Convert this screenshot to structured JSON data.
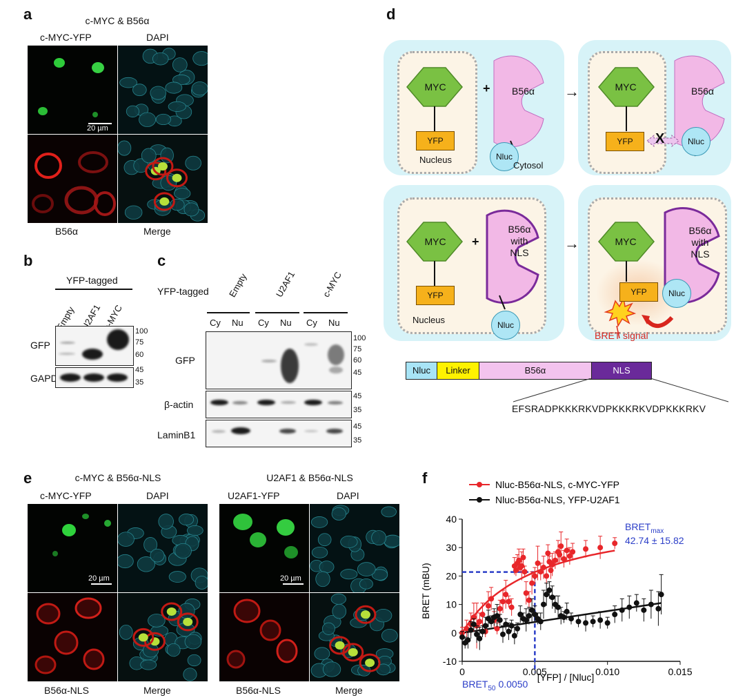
{
  "panels": {
    "a": "a",
    "b": "b",
    "c": "c",
    "d": "d",
    "e": "e",
    "f": "f"
  },
  "panel_a": {
    "title": "c-MYC & B56α",
    "labels": {
      "tl": "c-MYC-YFP",
      "tr": "DAPI",
      "bl": "B56α",
      "br": "Merge"
    },
    "scale_bar": "20 µm"
  },
  "panel_b": {
    "header": "YFP-tagged",
    "lanes": [
      "Empty",
      "U2AF1",
      "c-MYC"
    ],
    "rows": [
      "GFP",
      "GAPDH"
    ],
    "mw_gfp": [
      "100",
      "75",
      "60"
    ],
    "mw_gapdh": [
      "45",
      "35"
    ]
  },
  "panel_c": {
    "header": "YFP-tagged",
    "groups": [
      "Empty",
      "U2AF1",
      "c-MYC"
    ],
    "fractions": [
      "Cy",
      "Nu",
      "Cy",
      "Nu",
      "Cy",
      "Nu"
    ],
    "rows": [
      "GFP",
      "β-actin",
      "LaminB1"
    ],
    "mw_gfp": [
      "100",
      "75",
      "60",
      "45"
    ],
    "mw_actin": [
      "45",
      "35"
    ],
    "mw_lamin": [
      "45",
      "35"
    ]
  },
  "panel_d": {
    "myc": "MYC",
    "plus": "+",
    "b56a": "B56α",
    "yfp": "YFP",
    "nluc": "Nluc",
    "nucleus": "Nucleus",
    "cytosol": "Cytosol",
    "arrow": "→",
    "cross": "X",
    "b56a_nls": [
      "B56α",
      "with",
      "NLS"
    ],
    "bret_signal": "BRET signal",
    "construct": [
      "Nluc",
      "Linker",
      "B56α",
      "NLS"
    ],
    "nls_sequence": "EFSRADPKKKRKVDPKKKRKVDPKKKRKV"
  },
  "panel_e": {
    "left_title": "c-MYC & B56α-NLS",
    "right_title": "U2AF1 & B56α-NLS",
    "left_labels": {
      "tl": "c-MYC-YFP",
      "tr": "DAPI",
      "bl": "B56α-NLS",
      "br": "Merge"
    },
    "right_labels": {
      "tl": "U2AF1-YFP",
      "tr": "DAPI",
      "bl": "B56α-NLS",
      "br": "Merge"
    },
    "scale_bar": "20 µm"
  },
  "chart_data": {
    "type": "scatter",
    "xlabel": "[YFP] / [Nluc]",
    "ylabel": "BRET (mBU)",
    "xlim": [
      0,
      0.015
    ],
    "ylim": [
      -10,
      40
    ],
    "xticks": [
      "0",
      "0.005",
      "0.010",
      "0.015"
    ],
    "yticks": [
      "-10",
      "0",
      "10",
      "20",
      "30",
      "40"
    ],
    "bret_max_label": "BRET",
    "bret_max_sub": "max",
    "bret_max_value": "42.74 ± 15.82",
    "bret50_label": "BRET",
    "bret50_sub": "50",
    "bret50_value": "0.0050",
    "bret50_point": [
      0.005,
      21.4
    ],
    "legend_position": "top",
    "series": [
      {
        "name": "Nluc-B56α-NLS, c-MYC-YFP",
        "color": "#e8262a",
        "points": [
          [
            0.0,
            0.0,
            2
          ],
          [
            0.0003,
            1.5,
            3
          ],
          [
            0.0006,
            3.0,
            4
          ],
          [
            0.0008,
            5.5,
            5
          ],
          [
            0.001,
            2.5,
            8
          ],
          [
            0.0012,
            4.0,
            3
          ],
          [
            0.0014,
            6.5,
            4
          ],
          [
            0.0016,
            0.5,
            2
          ],
          [
            0.0018,
            9.5,
            5
          ],
          [
            0.002,
            12.0,
            4
          ],
          [
            0.0022,
            4.5,
            3
          ],
          [
            0.0024,
            1.5,
            2
          ],
          [
            0.0026,
            8.5,
            3
          ],
          [
            0.0028,
            11.0,
            4
          ],
          [
            0.003,
            13.5,
            5
          ],
          [
            0.0032,
            11.0,
            2
          ],
          [
            0.0034,
            9.0,
            3
          ],
          [
            0.0036,
            23.5,
            3
          ],
          [
            0.0037,
            22.0,
            2
          ],
          [
            0.0038,
            24.5,
            3
          ],
          [
            0.0039,
            25.5,
            4
          ],
          [
            0.004,
            23.0,
            2
          ],
          [
            0.0041,
            23.5,
            5
          ],
          [
            0.0042,
            26.5,
            3
          ],
          [
            0.0043,
            21.5,
            2
          ],
          [
            0.0044,
            14.0,
            4
          ],
          [
            0.0046,
            11.5,
            3
          ],
          [
            0.0048,
            17.5,
            4
          ],
          [
            0.005,
            20.0,
            3
          ],
          [
            0.0052,
            24.5,
            6
          ],
          [
            0.0054,
            21.5,
            3
          ],
          [
            0.0056,
            23.0,
            4
          ],
          [
            0.0058,
            20.0,
            3
          ],
          [
            0.0059,
            28.0,
            3
          ],
          [
            0.006,
            25.0,
            2
          ],
          [
            0.0061,
            22.0,
            3
          ],
          [
            0.0062,
            24.0,
            4
          ],
          [
            0.0064,
            25.5,
            3
          ],
          [
            0.0066,
            28.5,
            4
          ],
          [
            0.0067,
            27.5,
            3
          ],
          [
            0.0068,
            30.5,
            5
          ],
          [
            0.007,
            26.0,
            3
          ],
          [
            0.0072,
            29.0,
            4
          ],
          [
            0.0074,
            27.0,
            3
          ],
          [
            0.0076,
            28.5,
            3
          ],
          [
            0.0085,
            29.5,
            3
          ],
          [
            0.0095,
            30.0,
            4
          ],
          [
            0.0105,
            31.5,
            2
          ]
        ]
      },
      {
        "name": "Nluc-B56α-NLS, YFP-U2AF1",
        "color": "#111111",
        "points": [
          [
            0.0,
            -1.5,
            2
          ],
          [
            0.0002,
            -3.5,
            2
          ],
          [
            0.0004,
            -2.5,
            3
          ],
          [
            0.0006,
            1.0,
            3
          ],
          [
            0.0008,
            3.0,
            2
          ],
          [
            0.001,
            -0.5,
            3
          ],
          [
            0.0012,
            -2.0,
            4
          ],
          [
            0.0014,
            0.5,
            2
          ],
          [
            0.0016,
            2.5,
            3
          ],
          [
            0.0018,
            5.0,
            3
          ],
          [
            0.002,
            4.0,
            2
          ],
          [
            0.0022,
            5.5,
            3
          ],
          [
            0.0024,
            6.0,
            4
          ],
          [
            0.0026,
            4.5,
            2
          ],
          [
            0.0028,
            -0.5,
            3
          ],
          [
            0.003,
            3.0,
            2
          ],
          [
            0.0032,
            0.5,
            3
          ],
          [
            0.0034,
            2.5,
            2
          ],
          [
            0.0036,
            -1.0,
            3
          ],
          [
            0.0038,
            1.5,
            2
          ],
          [
            0.004,
            6.5,
            3
          ],
          [
            0.0042,
            5.0,
            2
          ],
          [
            0.0044,
            4.5,
            4
          ],
          [
            0.0046,
            6.0,
            3
          ],
          [
            0.0048,
            8.0,
            4
          ],
          [
            0.005,
            6.5,
            3
          ],
          [
            0.0052,
            5.0,
            2
          ],
          [
            0.0054,
            4.0,
            3
          ],
          [
            0.0056,
            10.0,
            5
          ],
          [
            0.0058,
            13.5,
            4
          ],
          [
            0.006,
            15.0,
            3
          ],
          [
            0.0062,
            12.5,
            4
          ],
          [
            0.0064,
            10.0,
            3
          ],
          [
            0.0066,
            9.0,
            4
          ],
          [
            0.0068,
            6.0,
            3
          ],
          [
            0.007,
            5.5,
            2
          ],
          [
            0.0072,
            7.5,
            3
          ],
          [
            0.0075,
            5.0,
            2
          ],
          [
            0.008,
            4.0,
            2
          ],
          [
            0.0085,
            3.5,
            3
          ],
          [
            0.009,
            4.0,
            2
          ],
          [
            0.0095,
            4.5,
            3
          ],
          [
            0.01,
            3.5,
            2
          ],
          [
            0.0105,
            6.5,
            3
          ],
          [
            0.011,
            8.0,
            4
          ],
          [
            0.0115,
            9.0,
            4
          ],
          [
            0.012,
            10.5,
            3
          ],
          [
            0.0125,
            8.0,
            4
          ],
          [
            0.013,
            10.0,
            5
          ],
          [
            0.0135,
            8.5,
            6
          ],
          [
            0.0137,
            13.5,
            7
          ]
        ]
      }
    ]
  }
}
